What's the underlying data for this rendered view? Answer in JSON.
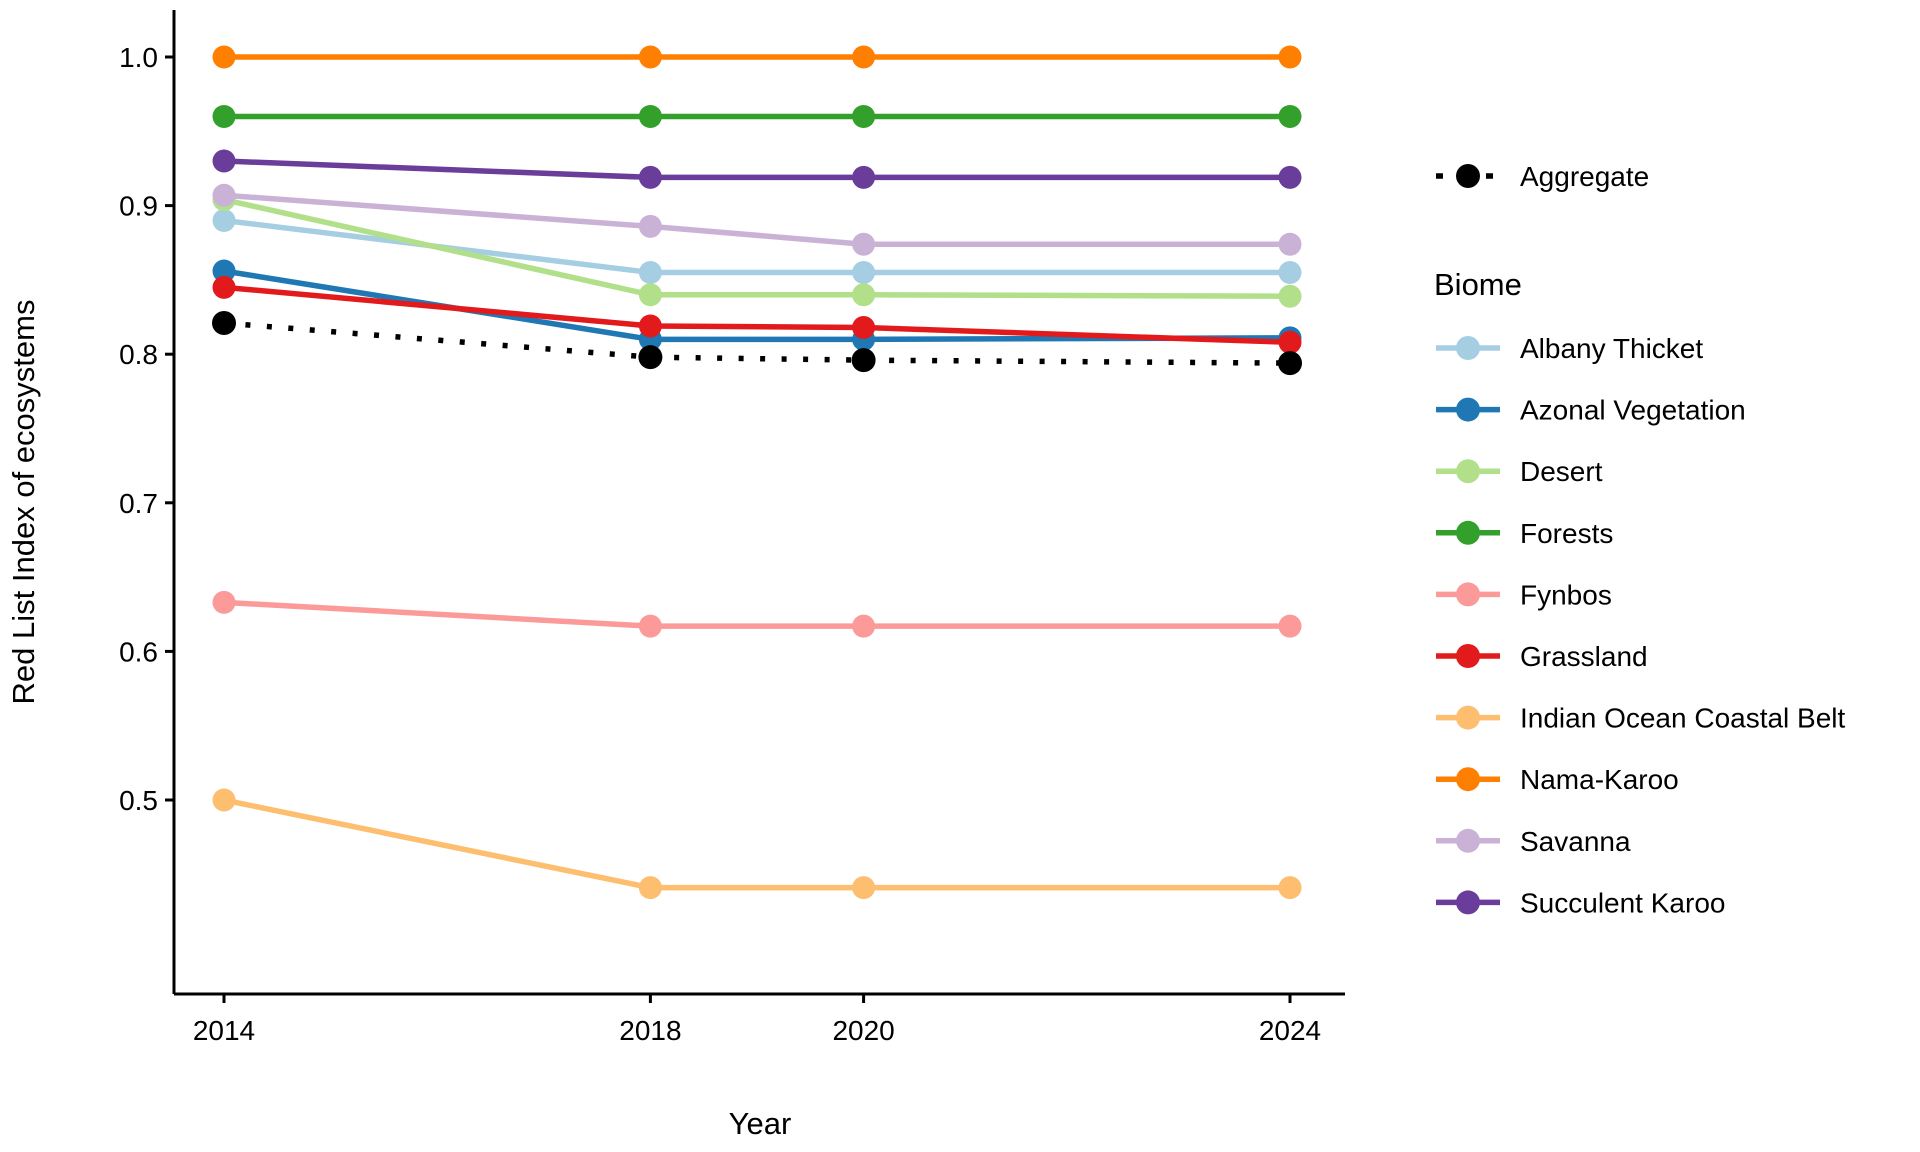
{
  "chart_data": {
    "type": "line",
    "title": "",
    "xlabel": "Year",
    "ylabel": "Red List Index of ecosystems",
    "x": [
      2014,
      2018,
      2020,
      2024
    ],
    "xtick_labels": [
      "2014",
      "2018",
      "2020",
      "2024"
    ],
    "yticks": [
      1.0,
      0.9,
      0.8,
      0.7,
      0.6,
      0.5
    ],
    "ytick_labels": [
      "1.0",
      "0.9",
      "0.8",
      "0.7",
      "0.6",
      "0.5"
    ],
    "xlim": [
      2013.5,
      2024.5
    ],
    "ylim": [
      0.37,
      1.03
    ],
    "grid": false,
    "legend_position": "right",
    "legend": {
      "aggregate_label": "Aggregate",
      "biome_title": "Biome"
    },
    "aggregate": {
      "name": "Aggregate",
      "color": "#000000",
      "line_style": "dotted",
      "values": [
        0.821,
        0.798,
        0.796,
        0.794
      ]
    },
    "series": [
      {
        "name": "Albany Thicket",
        "color": "#A6CEE3",
        "values": [
          0.89,
          0.855,
          0.855,
          0.855
        ]
      },
      {
        "name": "Azonal Vegetation",
        "color": "#1F78B4",
        "values": [
          0.856,
          0.81,
          0.81,
          0.811
        ]
      },
      {
        "name": "Desert",
        "color": "#B2DF8A",
        "values": [
          0.904,
          0.84,
          0.84,
          0.839
        ]
      },
      {
        "name": "Forests",
        "color": "#33A02C",
        "values": [
          0.96,
          0.96,
          0.96,
          0.96
        ]
      },
      {
        "name": "Fynbos",
        "color": "#FB9A99",
        "values": [
          0.633,
          0.617,
          0.617,
          0.617
        ]
      },
      {
        "name": "Grassland",
        "color": "#E31A1C",
        "values": [
          0.845,
          0.819,
          0.818,
          0.808
        ]
      },
      {
        "name": "Indian Ocean Coastal Belt",
        "color": "#FDBF6F",
        "values": [
          0.5,
          0.441,
          0.441,
          0.441
        ]
      },
      {
        "name": "Nama-Karoo",
        "color": "#FF7F00",
        "values": [
          1.0,
          1.0,
          1.0,
          1.0
        ]
      },
      {
        "name": "Savanna",
        "color": "#CAB2D6",
        "values": [
          0.907,
          0.886,
          0.874,
          0.874
        ]
      },
      {
        "name": "Succulent Karoo",
        "color": "#6A3D9A",
        "values": [
          0.93,
          0.919,
          0.919,
          0.919
        ]
      }
    ]
  }
}
